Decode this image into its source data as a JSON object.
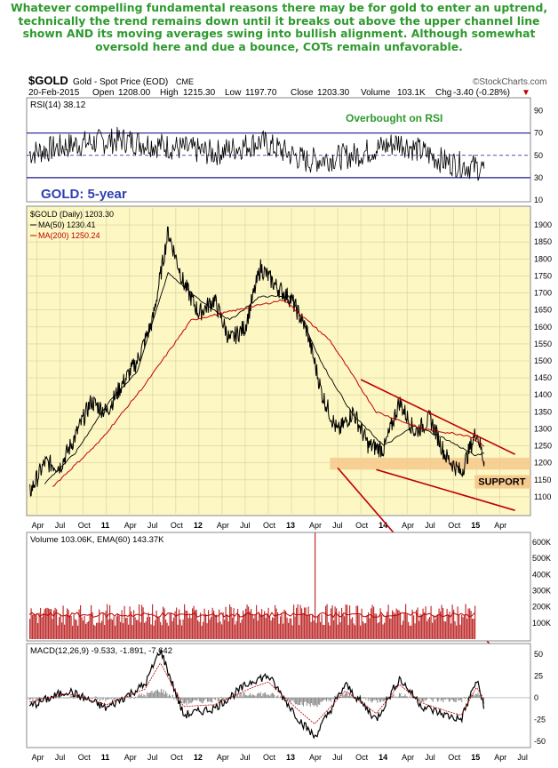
{
  "headline": "Whatever compelling fundamental reasons there may be for gold to enter an uptrend, technically the trend remains down until it breaks out above the upper channel line shown AND its moving averages swing into bullish alignment. Although somewhat oversold here and due a bounce, COTs remain unfavorable.",
  "header": {
    "symbol": "$GOLD",
    "description": "Gold - Spot Price (EOD)",
    "exchange": "CME",
    "watermark": "©StockCharts.com",
    "date": "20-Feb-2015",
    "open_label": "Open",
    "open": "1208.00",
    "high_label": "High",
    "high": "1215.30",
    "low_label": "Low",
    "low": "1197.70",
    "close_label": "Close",
    "close": "1203.30",
    "volume_label": "Volume",
    "volume": "103.1K",
    "chg_label": "Chg",
    "chg": "-3.40 (-0.28%)",
    "chg_arrow": "▼"
  },
  "colors": {
    "headline": "#2e9a2e",
    "panel_bg": "#fdf7c4",
    "price_line": "#000000",
    "ma50": "#000000",
    "ma200": "#c00000",
    "channel": "#c00000",
    "rsi_band": "#1a1a8c",
    "volume_bar": "#c03030",
    "support_band": "#f6c98c",
    "annotation_green": "#2e9a2e",
    "title_blue": "#3040b0"
  },
  "chart_data": [
    {
      "type": "line",
      "panel": "RSI",
      "legend": "RSI(14) 38.12",
      "ylim": [
        10,
        100
      ],
      "yticks": [
        90,
        70,
        50,
        30,
        10
      ],
      "reference_lines": [
        70,
        50,
        30
      ],
      "last_value": 38.12,
      "annotation": "Overbought on RSI",
      "x": [
        "2010-03",
        "2010-09",
        "2011-03",
        "2011-09",
        "2012-03",
        "2012-09",
        "2013-03",
        "2013-09",
        "2014-03",
        "2014-09",
        "2015-02"
      ],
      "values": [
        52,
        60,
        64,
        58,
        52,
        62,
        45,
        50,
        62,
        44,
        38
      ]
    },
    {
      "type": "line",
      "panel": "Price",
      "title": "GOLD: 5-year",
      "legend": [
        "$GOLD (Daily) 1203.30",
        "MA(50) 1230.41",
        "MA(200) 1250.24"
      ],
      "ylim": [
        1050,
        1950
      ],
      "yticks": [
        1900,
        1850,
        1800,
        1750,
        1700,
        1650,
        1600,
        1550,
        1500,
        1450,
        1400,
        1350,
        1300,
        1250,
        1200,
        1150,
        1100
      ],
      "grid": true,
      "x_tick_labels": [
        "Apr",
        "Jul",
        "Oct",
        "11",
        "Apr",
        "Jul",
        "Oct",
        "12",
        "Apr",
        "Jul",
        "Oct",
        "13",
        "Apr",
        "Jul",
        "Oct",
        "14",
        "Apr",
        "Jul",
        "Oct",
        "15",
        "Apr"
      ],
      "series": [
        {
          "name": "$GOLD (Daily)",
          "x": [
            "2010-03",
            "2010-05",
            "2010-07",
            "2010-09",
            "2010-11",
            "2011-01",
            "2011-03",
            "2011-05",
            "2011-07",
            "2011-09",
            "2011-11",
            "2012-01",
            "2012-03",
            "2012-05",
            "2012-07",
            "2012-09",
            "2012-11",
            "2013-01",
            "2013-03",
            "2013-05",
            "2013-07",
            "2013-09",
            "2013-11",
            "2014-01",
            "2014-03",
            "2014-05",
            "2014-07",
            "2014-09",
            "2014-11",
            "2015-01",
            "2015-02"
          ],
          "values": [
            1110,
            1200,
            1190,
            1280,
            1380,
            1350,
            1430,
            1500,
            1620,
            1880,
            1730,
            1640,
            1680,
            1560,
            1600,
            1775,
            1720,
            1680,
            1590,
            1400,
            1290,
            1350,
            1250,
            1240,
            1380,
            1290,
            1330,
            1220,
            1170,
            1295,
            1203
          ]
        },
        {
          "name": "MA(50)",
          "x": [
            "2010-05",
            "2010-09",
            "2011-01",
            "2011-05",
            "2011-09",
            "2012-01",
            "2012-05",
            "2012-09",
            "2013-01",
            "2013-05",
            "2013-09",
            "2014-01",
            "2014-05",
            "2014-09",
            "2015-01",
            "2015-02"
          ],
          "values": [
            1140,
            1230,
            1370,
            1470,
            1760,
            1680,
            1620,
            1690,
            1690,
            1490,
            1340,
            1250,
            1310,
            1270,
            1220,
            1230
          ]
        },
        {
          "name": "MA(200)",
          "x": [
            "2010-06",
            "2010-12",
            "2011-06",
            "2011-12",
            "2012-06",
            "2012-12",
            "2013-06",
            "2013-12",
            "2014-06",
            "2014-12",
            "2015-02"
          ],
          "values": [
            1130,
            1260,
            1430,
            1620,
            1650,
            1680,
            1560,
            1350,
            1300,
            1280,
            1250
          ]
        }
      ],
      "annotations": [
        {
          "text": "SUPPORT",
          "value": 1140
        }
      ],
      "support_band": [
        1180,
        1215
      ],
      "channel_lines": [
        {
          "from": {
            "x": "2013-10",
            "y": 1445
          },
          "to": {
            "x": "2015-06",
            "y": 1225
          }
        },
        {
          "from": {
            "x": "2013-07",
            "y": 1185
          },
          "to": {
            "x": "2015-06",
            "y": 580
          }
        },
        {
          "from": {
            "x": "2013-12",
            "y": 1180
          },
          "to": {
            "x": "2015-06",
            "y": 1060
          }
        }
      ]
    },
    {
      "type": "bar",
      "panel": "Volume",
      "legend": "Volume 103.06K, EMA(60) 143.37K",
      "ylim": [
        0,
        650000
      ],
      "yticks": [
        "600K",
        "500K",
        "400K",
        "300K",
        "200K",
        "100K"
      ],
      "spike": {
        "x": "2013-04",
        "value": 660000
      },
      "typical_value": 150000,
      "ema_last": 143370
    },
    {
      "type": "line",
      "panel": "MACD",
      "legend": "MACD(12,26,9) -9.533, -1.891, -7.642",
      "ylim": [
        -55,
        60
      ],
      "yticks": [
        50,
        25,
        0,
        -25,
        -50
      ],
      "x": [
        "2010-03",
        "2010-08",
        "2011-01",
        "2011-06",
        "2011-08",
        "2011-11",
        "2012-03",
        "2012-08",
        "2012-10",
        "2013-02",
        "2013-04",
        "2013-08",
        "2013-12",
        "2014-03",
        "2014-06",
        "2014-09",
        "2014-11",
        "2015-01",
        "2015-02"
      ],
      "series": [
        {
          "name": "MACD",
          "values": [
            -10,
            8,
            -12,
            15,
            55,
            -20,
            -12,
            20,
            25,
            -25,
            -45,
            15,
            -25,
            22,
            -10,
            -20,
            -25,
            20,
            -9.533
          ]
        },
        {
          "name": "Signal",
          "values": [
            -5,
            5,
            -8,
            10,
            40,
            -10,
            -8,
            12,
            18,
            -15,
            -30,
            8,
            -18,
            15,
            -6,
            -15,
            -20,
            12,
            -1.891
          ]
        }
      ],
      "x_tick_labels": [
        "Apr",
        "Jul",
        "Oct",
        "11",
        "Apr",
        "Jul",
        "Oct",
        "12",
        "Apr",
        "Jul",
        "Oct",
        "13",
        "Apr",
        "Jul",
        "Oct",
        "14",
        "Apr",
        "Jul",
        "Oct",
        "15",
        "Apr",
        "Jul"
      ]
    }
  ]
}
